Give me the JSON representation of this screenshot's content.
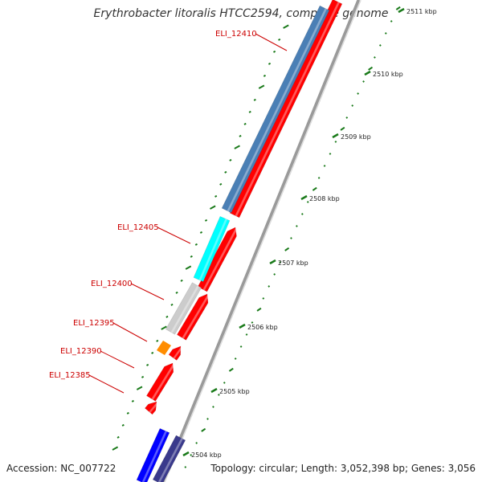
{
  "title": "Erythrobacter litoralis HTCC2594, complete genome",
  "accession": "Accession: NC_007722",
  "topology": "Topology: circular; Length: 3,052,398 bp; Genes: 3,056",
  "colors": {
    "cds_forward": "#ff0000",
    "gene_blue": "#4a7fb5",
    "gene_cyan": "#00ffff",
    "gene_grey": "#cccccc",
    "gene_orange": "#ff8c00",
    "gene_blue_bright": "#0000ff",
    "gene_navy": "#3a3a8c",
    "backbone": "#9a9a9a",
    "ticks": "#1a7a1a",
    "label_red": "#cc0000"
  },
  "scale": {
    "unit": "kbp",
    "ticks": [
      {
        "kbp": 2504,
        "label": "2504 kbp"
      },
      {
        "kbp": 2505,
        "label": "2505 kbp"
      },
      {
        "kbp": 2506,
        "label": "2506 kbp"
      },
      {
        "kbp": 2507,
        "label": "2507 kbp"
      },
      {
        "kbp": 2508,
        "label": "2508 kbp"
      },
      {
        "kbp": 2509,
        "label": "2509 kbp"
      },
      {
        "kbp": 2510,
        "label": "2510 kbp"
      },
      {
        "kbp": 2511,
        "label": "2511 kbp"
      }
    ]
  },
  "genes": [
    {
      "label": "ELI_12410",
      "color_key": "gene_blue"
    },
    {
      "label": "ELI_12405",
      "color_key": "gene_cyan"
    },
    {
      "label": "ELI_12400",
      "color_key": "gene_grey"
    },
    {
      "label": "ELI_12395",
      "color_key": "gene_orange"
    },
    {
      "label": "ELI_12390",
      "color_key": "cds_forward"
    },
    {
      "label": "ELI_12385",
      "color_key": "cds_forward"
    }
  ]
}
